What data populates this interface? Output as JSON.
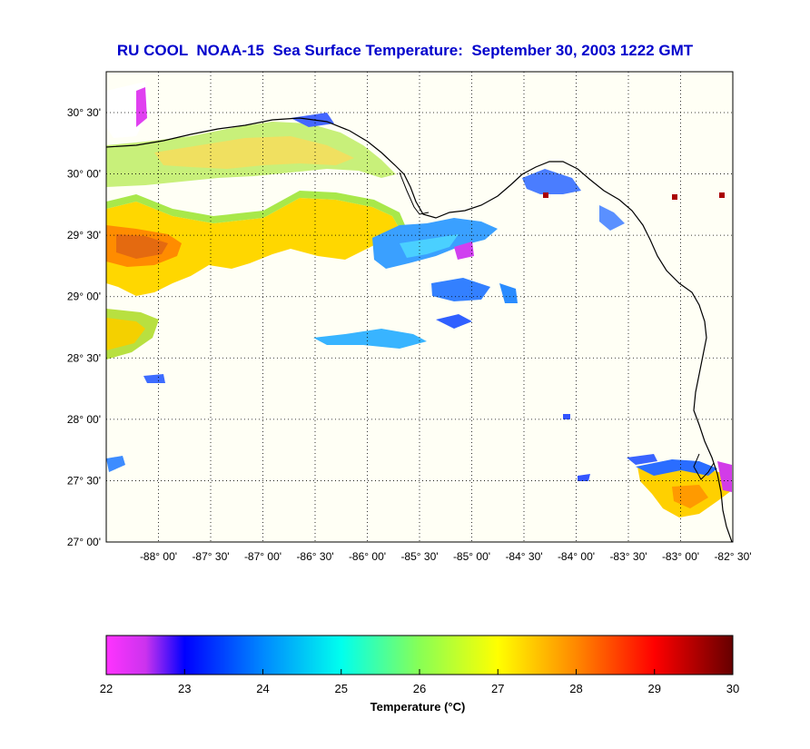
{
  "title": "RU COOL  NOAA-15  Sea Surface Temperature:  September 30, 2003 1222 GMT",
  "map": {
    "lat_range": [
      27.0,
      30.833
    ],
    "lon_range": [
      -88.5,
      -82.5
    ],
    "lat_ticks": [
      {
        "value": 30.5,
        "label": "30° 30'"
      },
      {
        "value": 30.0,
        "label": "30° 00'"
      },
      {
        "value": 29.5,
        "label": "29° 30'"
      },
      {
        "value": 29.0,
        "label": "29° 00'"
      },
      {
        "value": 28.5,
        "label": "28° 30'"
      },
      {
        "value": 28.0,
        "label": "28° 00'"
      },
      {
        "value": 27.5,
        "label": "27° 30'"
      },
      {
        "value": 27.0,
        "label": "27° 00'"
      }
    ],
    "lon_ticks": [
      {
        "value": -88.0,
        "label": "-88° 00'"
      },
      {
        "value": -87.5,
        "label": "-87° 30'"
      },
      {
        "value": -87.0,
        "label": "-87° 00'"
      },
      {
        "value": -86.5,
        "label": "-86° 30'"
      },
      {
        "value": -86.0,
        "label": "-86° 00'"
      },
      {
        "value": -85.5,
        "label": "-85° 30'"
      },
      {
        "value": -85.0,
        "label": "-85° 00'"
      },
      {
        "value": -84.5,
        "label": "-84° 30'"
      },
      {
        "value": -84.0,
        "label": "-84° 00'"
      },
      {
        "value": -83.5,
        "label": "-83° 30'"
      },
      {
        "value": -83.0,
        "label": "-83° 00'"
      },
      {
        "value": -82.5,
        "label": "-82° 30'"
      }
    ]
  },
  "colorbar": {
    "min": 22,
    "max": 30,
    "labels": [
      "22",
      "23",
      "24",
      "25",
      "26",
      "27",
      "28",
      "29",
      "30"
    ],
    "title": "Temperature (°C)",
    "stops": [
      {
        "t": 22.0,
        "color": "#ff33ff"
      },
      {
        "t": 22.5,
        "color": "#cc33ee"
      },
      {
        "t": 23.0,
        "color": "#0000ff"
      },
      {
        "t": 24.0,
        "color": "#0088ff"
      },
      {
        "t": 25.0,
        "color": "#00ffee"
      },
      {
        "t": 26.0,
        "color": "#88ff55"
      },
      {
        "t": 27.0,
        "color": "#ffff00"
      },
      {
        "t": 28.0,
        "color": "#ff8800"
      },
      {
        "t": 29.0,
        "color": "#ff0000"
      },
      {
        "t": 30.0,
        "color": "#660000"
      }
    ]
  },
  "colors": {
    "title": "#0000cc",
    "background": "#fffff5",
    "coast": "#000000",
    "grid": "#000000"
  }
}
